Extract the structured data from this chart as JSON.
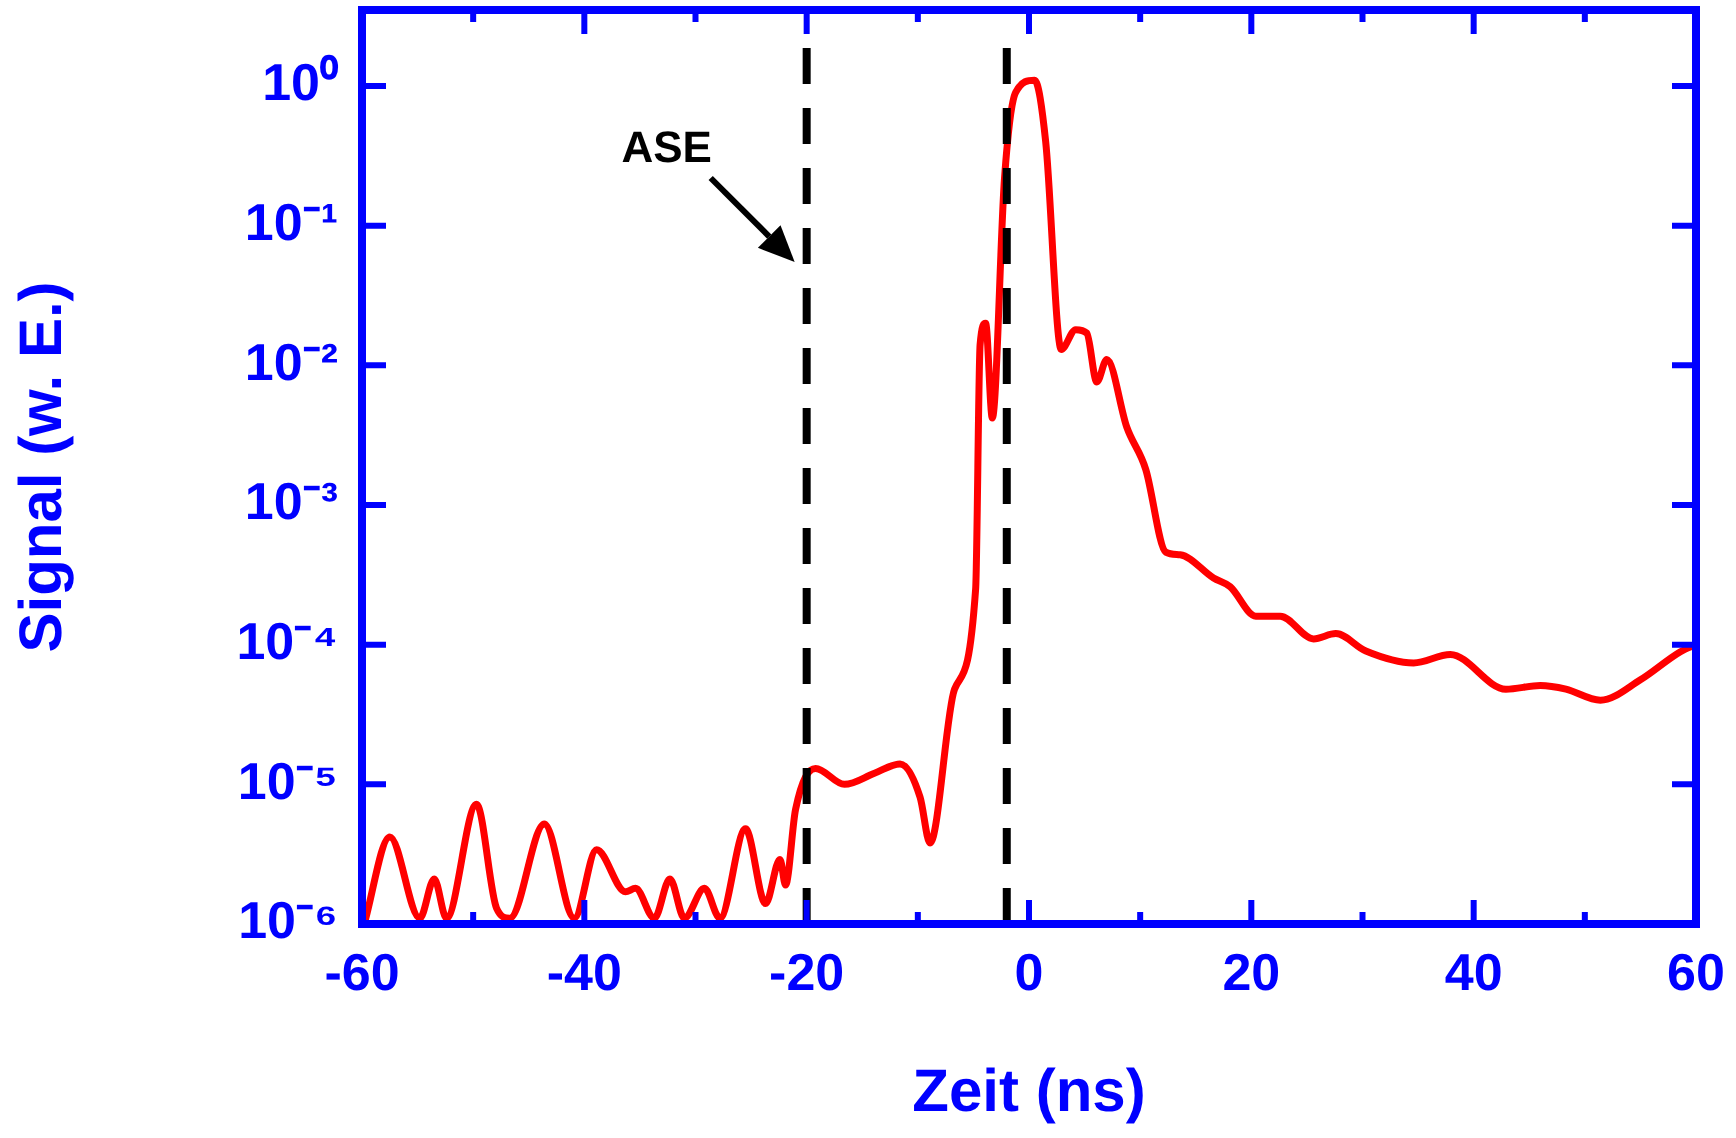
{
  "chart_data": {
    "type": "line",
    "xlabel": "Zeit (ns)",
    "ylabel": "Signal (w. E.)",
    "log": "y",
    "grid": false,
    "legend": false,
    "marker": "none",
    "line_style": "solid",
    "xlim": [
      -60,
      60
    ],
    "xticks": [
      -60,
      {
        "value": -50,
        "label": null
      },
      -40,
      {
        "value": -30,
        "label": null
      },
      -20,
      {
        "value": -10,
        "label": null
      },
      0,
      {
        "value": 10,
        "label": null
      },
      20,
      {
        "value": 30,
        "label": null
      },
      40,
      {
        "value": 50,
        "label": null
      },
      60
    ],
    "ylim": [
      1e-06,
      3.5
    ],
    "yticks": [
      {
        "value": 1e-06,
        "label": "10⁻⁶"
      },
      {
        "value": 1e-05,
        "label": "10⁻⁵"
      },
      {
        "value": 0.0001,
        "label": "10⁻⁴"
      },
      {
        "value": 0.001,
        "label": "10⁻³"
      },
      {
        "value": 0.01,
        "label": "10⁻²"
      },
      {
        "value": 0.1,
        "label": "10⁻¹"
      },
      {
        "value": 1,
        "label": "10⁰"
      }
    ],
    "series": [
      {
        "color": "#ff0000",
        "x": [
          -59.8,
          -57.5,
          -54.8,
          -53.5,
          -52.4,
          -49.7,
          -47.9,
          -46.7,
          -43.6,
          -40.9,
          -38.9,
          -36.3,
          -35.4,
          -33.7,
          -32.3,
          -31.0,
          -29.2,
          -27.8,
          -25.5,
          -23.7,
          -22.4,
          -21.9,
          -21.0,
          -19.2,
          -16.6,
          -13.9,
          -11.6,
          -9.8,
          -8.9,
          -6.7,
          -4.8,
          -4.4,
          -3.9,
          -3.3,
          -2.2,
          -1.2,
          0.5,
          1.5,
          2.9,
          4.2,
          5.2,
          6.1,
          7.0,
          8.8,
          10.5,
          12.3,
          13.6,
          16.6,
          18.1,
          20.4,
          22.6,
          25.6,
          27.6,
          30.3,
          34.6,
          37.9,
          42.9,
          46.0,
          48.3,
          51.4,
          55.0,
          58.6,
          60
        ],
        "values": [
          1e-06,
          4.2e-06,
          1.1e-06,
          2.1e-06,
          1.1e-06,
          7.2e-06,
          1.3e-06,
          1.1e-06,
          5.2e-06,
          1.1e-06,
          3.4e-06,
          1.7e-06,
          1.8e-06,
          1.1e-06,
          2.1e-06,
          1.1e-06,
          1.8e-06,
          1.1e-06,
          4.8e-06,
          1.4e-06,
          2.9e-06,
          1.9e-06,
          6.6e-06,
          1.3e-05,
          1e-05,
          1.2e-05,
          1.4e-05,
          8.1e-06,
          3.8e-06,
          4.8e-05,
          0.00025,
          0.014,
          0.02,
          0.0042,
          0.22,
          0.9,
          1.1,
          0.4,
          0.013,
          0.018,
          0.017,
          0.0076,
          0.011,
          0.0036,
          0.0018,
          0.00046,
          0.00044,
          0.0003,
          0.00026,
          0.00016,
          0.00016,
          0.00011,
          0.00012,
          9e-05,
          7.4e-05,
          8.5e-05,
          4.8e-05,
          5.1e-05,
          4.8e-05,
          4e-05,
          5.6e-05,
          8.9e-05,
          0.0001
        ]
      }
    ],
    "ref_lines": [
      {
        "axis": "x",
        "value": -20,
        "color": "#000000",
        "line_style": "dashed"
      },
      {
        "axis": "x",
        "value": -2,
        "color": "#000000",
        "line_style": "dashed"
      }
    ],
    "annotations": [
      "ASE"
    ]
  }
}
